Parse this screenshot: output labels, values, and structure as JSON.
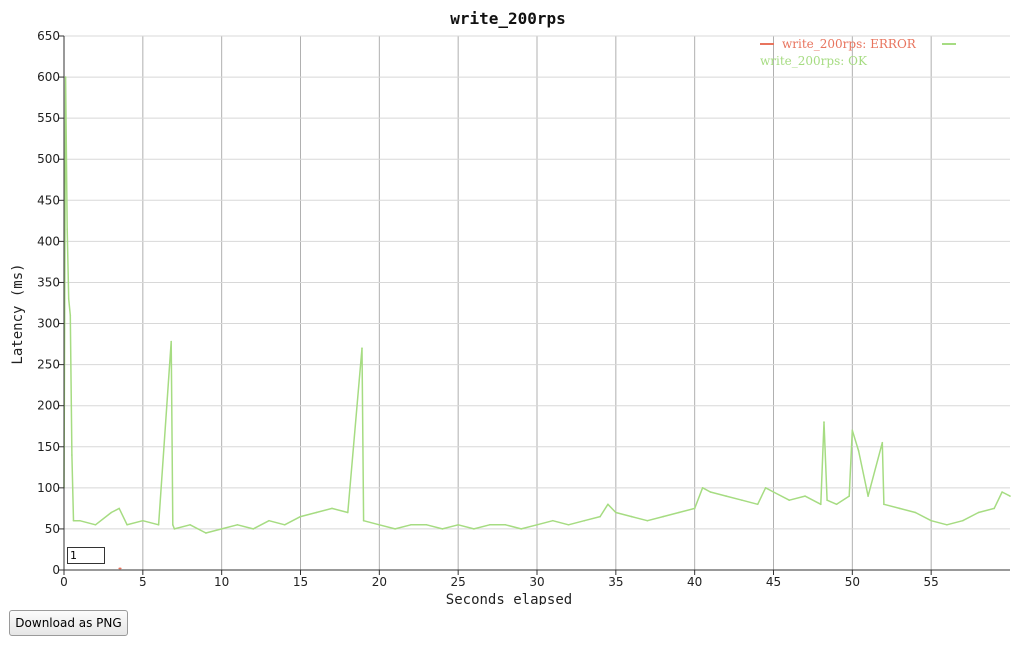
{
  "chart_data": {
    "type": "line",
    "title": "write_200rps",
    "xlabel": "Seconds elapsed",
    "ylabel": "Latency (ms)",
    "xlim": [
      0,
      60
    ],
    "ylim": [
      0,
      650
    ],
    "xticks": [
      0,
      5,
      10,
      15,
      20,
      25,
      30,
      35,
      40,
      45,
      50,
      55
    ],
    "yticks": [
      0,
      50,
      100,
      150,
      200,
      250,
      300,
      350,
      400,
      450,
      500,
      550,
      600,
      650
    ],
    "grid": true,
    "legend_position": "top-right",
    "series": [
      {
        "name": "write_200rps: ERROR",
        "color": "#e8745e",
        "x": [
          3.5,
          3.6
        ],
        "y": [
          2,
          2
        ]
      },
      {
        "name": "write_200rps: OK",
        "color": "#a6dc82",
        "x": [
          0,
          0.1,
          0.2,
          0.3,
          0.4,
          0.5,
          0.6,
          1,
          2,
          3,
          3.5,
          4,
          5,
          6,
          6.8,
          6.9,
          7,
          8,
          9,
          10,
          11,
          12,
          13,
          14,
          15,
          16,
          17,
          18,
          18.9,
          19,
          20,
          21,
          22,
          23,
          24,
          25,
          26,
          27,
          28,
          29,
          30,
          31,
          32,
          33,
          34,
          34.5,
          35,
          36,
          37,
          38,
          39,
          40,
          40.5,
          41,
          42,
          43,
          44,
          44.5,
          45,
          46,
          47,
          48,
          48.2,
          48.4,
          49,
          49.8,
          50,
          50.4,
          51,
          51.9,
          52,
          53,
          54,
          55,
          56,
          57,
          58,
          59,
          59.5,
          60
        ],
        "y": [
          100,
          600,
          415,
          330,
          310,
          140,
          60,
          60,
          55,
          70,
          75,
          55,
          60,
          55,
          278,
          55,
          50,
          55,
          45,
          50,
          55,
          50,
          60,
          55,
          65,
          70,
          75,
          70,
          270,
          60,
          55,
          50,
          55,
          55,
          50,
          55,
          50,
          55,
          55,
          50,
          55,
          60,
          55,
          60,
          65,
          80,
          70,
          65,
          60,
          65,
          70,
          75,
          100,
          95,
          90,
          85,
          80,
          100,
          95,
          85,
          90,
          80,
          180,
          85,
          80,
          90,
          170,
          145,
          90,
          155,
          80,
          75,
          70,
          60,
          55,
          60,
          70,
          75,
          95,
          90
        ]
      }
    ]
  },
  "controls": {
    "download_label": "Download as PNG",
    "smoothing_value": "1"
  }
}
